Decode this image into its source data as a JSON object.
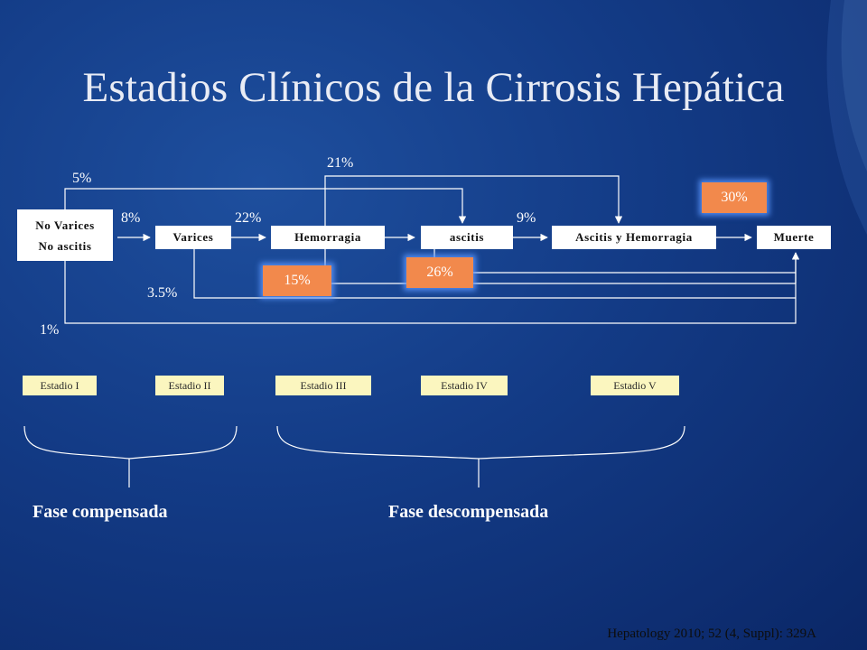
{
  "title": "Estadios Clínicos de la Cirrosis Hepática",
  "nodes": {
    "no_varices": [
      "No Varices",
      "No ascitis"
    ],
    "varices": "Varices",
    "hemorragia": "Hemorragia",
    "ascitis": "ascitis",
    "ascitis_hemorragia": "Ascitis y Hemorragia",
    "muerte": "Muerte"
  },
  "transitions": {
    "p_5": "5%",
    "p_8": "8%",
    "p_22": "22%",
    "p_21": "21%",
    "p_9": "9%",
    "p_3_5": "3.5%",
    "p_1": "1%"
  },
  "mortality": {
    "m_15": "15%",
    "m_26": "26%",
    "m_30": "30%"
  },
  "stages": [
    "Estadio I",
    "Estadio II",
    "Estadio III",
    "Estadio IV",
    "Estadio V"
  ],
  "phases": {
    "compensada": "Fase compensada",
    "descompensada": "Fase descompensada"
  },
  "reference": "Hepatology 2010; 52 (4, Suppl): 329A",
  "colors": {
    "background": "#133b86",
    "mortality_box": "#f2894c",
    "stage_box": "#fbf6bf",
    "node_box": "#ffffff"
  }
}
